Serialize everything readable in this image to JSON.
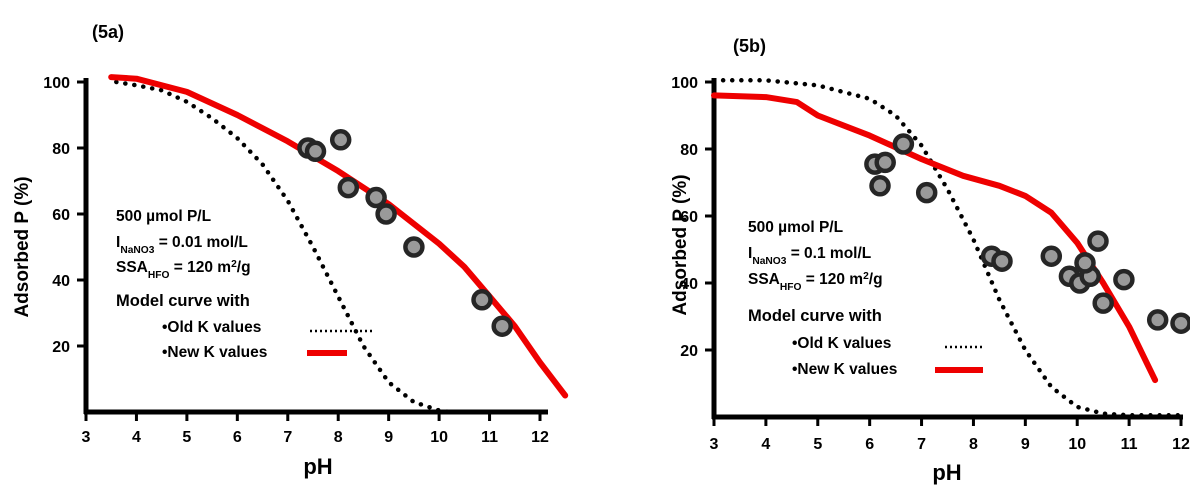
{
  "chart_data": [
    {
      "panel_label": "(5a)",
      "type": "scatter",
      "xlabel": "pH",
      "ylabel": "Adsorbed P (%)",
      "xlim": [
        3,
        12.5
      ],
      "ylim": [
        0,
        100
      ],
      "x_ticks": [
        "3",
        "4",
        "5",
        "6",
        "7",
        "8",
        "9",
        "10",
        "11",
        "12"
      ],
      "y_ticks": [
        "20",
        "40",
        "60",
        "80",
        "100"
      ],
      "annotation": {
        "line1": "500 µmol P/L",
        "line2_main": "I",
        "line2_sub": "NaNO3",
        "line2_rest": " = 0.01 mol/L",
        "line3_main": "SSA",
        "line3_sub": "HFO",
        "line3_rest": " = 120 m",
        "line3_sup": "2",
        "line3_end": "/g",
        "model_title": "Model curve with",
        "legend_old": "•Old K values",
        "legend_new": "•New K values"
      },
      "series": [
        {
          "name": "Old K values",
          "kind": "dotted-line",
          "color": "#000000",
          "x": [
            3.6,
            4,
            4.5,
            5,
            5.5,
            6,
            6.5,
            7,
            7.5,
            8,
            8.5,
            9,
            9.5,
            10,
            10.2
          ],
          "y": [
            100,
            99,
            97.5,
            94,
            89,
            83,
            75,
            64,
            50,
            35,
            20,
            9,
            3,
            0.5,
            0
          ]
        },
        {
          "name": "New K values",
          "kind": "solid-line",
          "color": "#ee0000",
          "x": [
            3.5,
            4,
            5,
            6,
            7,
            8,
            9,
            10,
            10.5,
            11,
            11.5,
            12,
            12.5
          ],
          "y": [
            101.5,
            101,
            97,
            90,
            82,
            73,
            63,
            51,
            44,
            35,
            26,
            15,
            5
          ]
        },
        {
          "name": "Measured",
          "kind": "points",
          "color": "#333333",
          "x": [
            7.4,
            7.55,
            8.05,
            8.2,
            8.75,
            8.95,
            9.5,
            10.85,
            11.25
          ],
          "y": [
            80,
            79,
            82.5,
            68,
            65,
            60,
            50,
            34,
            26
          ]
        }
      ]
    },
    {
      "panel_label": "(5b)",
      "type": "scatter",
      "xlabel": "pH",
      "ylabel": "Adsorbed P (%)",
      "xlim": [
        3,
        12
      ],
      "ylim": [
        0,
        100
      ],
      "x_ticks": [
        "3",
        "4",
        "5",
        "6",
        "7",
        "8",
        "9",
        "10",
        "11",
        "12"
      ],
      "y_ticks": [
        "20",
        "40",
        "60",
        "80",
        "100"
      ],
      "annotation": {
        "line1": "500 µmol P/L",
        "line2_main": "I",
        "line2_sub": "NaNO3",
        "line2_rest": " = 0.1 mol/L",
        "line3_main": "SSA",
        "line3_sub": "HFO",
        "line3_rest": " = 120 m",
        "line3_sup": "2",
        "line3_end": "/g",
        "model_title": "Model curve with",
        "legend_old": "•Old K values",
        "legend_new": "•New K values"
      },
      "series": [
        {
          "name": "Old K values",
          "kind": "dotted-line",
          "color": "#000000",
          "x": [
            3,
            4,
            5,
            6,
            6.5,
            7,
            7.5,
            8,
            8.5,
            9,
            9.5,
            10,
            10.5,
            11,
            11.5,
            12
          ],
          "y": [
            100.5,
            100.5,
            99,
            95,
            90,
            81,
            68,
            53,
            35,
            20,
            9,
            3,
            1,
            0.5,
            0.5,
            0.5
          ]
        },
        {
          "name": "New K values",
          "kind": "solid-line",
          "color": "#ee0000",
          "x": [
            3,
            4,
            4.6,
            5,
            6,
            7,
            7.8,
            8.5,
            9,
            9.5,
            10,
            10.5,
            11,
            11.5
          ],
          "y": [
            96,
            95.5,
            94,
            90,
            84,
            77,
            72,
            69,
            66,
            61,
            52,
            40,
            27,
            11
          ]
        },
        {
          "name": "Measured",
          "kind": "points",
          "color": "#333333",
          "x": [
            6.1,
            6.3,
            6.65,
            6.2,
            7.1,
            8.35,
            8.55,
            9.5,
            9.85,
            10.05,
            10.25,
            10.15,
            10.4,
            10.5,
            10.9,
            11.55,
            12.0
          ],
          "y": [
            75.5,
            76,
            81.5,
            69,
            67,
            48,
            46.5,
            48,
            42,
            40,
            42,
            46,
            52.5,
            34,
            41,
            29,
            28
          ]
        }
      ]
    }
  ]
}
